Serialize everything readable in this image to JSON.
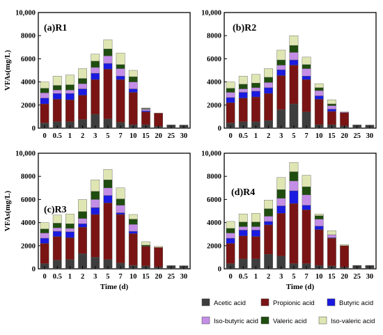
{
  "chart_data": {
    "type": "bar",
    "stacked": true,
    "xlabel": "Time (d)",
    "ylabel": "VFAs(mg/L)",
    "ylim": [
      0,
      10000
    ],
    "yticks": [
      0,
      2000,
      4000,
      6000,
      8000,
      10000
    ],
    "ytick_labels": [
      "0",
      "2000",
      "4000",
      "6000",
      "8000",
      "10,000"
    ],
    "categories": [
      "0",
      "0.5",
      "1",
      "2",
      "3",
      "5",
      "7",
      "10",
      "15",
      "20",
      "25",
      "30"
    ],
    "legend": [
      {
        "name": "Acetic acid",
        "color": "#3d3d3d"
      },
      {
        "name": "Propionic acid",
        "color": "#7a1414"
      },
      {
        "name": "Butyric acid",
        "color": "#1a1ae0"
      },
      {
        "name": "Iso-butyric acid",
        "color": "#c48ee6"
      },
      {
        "name": "Valeric acid",
        "color": "#1f4d0f"
      },
      {
        "name": "Iso-valeric acid",
        "color": "#dfe6b3"
      }
    ],
    "panels": [
      {
        "label": "(a)R1",
        "stacks": [
          [
            450,
            1650,
            500,
            450,
            400,
            550
          ],
          [
            550,
            1950,
            500,
            300,
            400,
            800
          ],
          [
            550,
            1900,
            550,
            300,
            450,
            850
          ],
          [
            750,
            2100,
            550,
            450,
            450,
            850
          ],
          [
            1200,
            3000,
            550,
            500,
            550,
            600
          ],
          [
            800,
            4300,
            500,
            650,
            600,
            800
          ],
          [
            500,
            3700,
            300,
            650,
            350,
            1000
          ],
          [
            300,
            2800,
            300,
            600,
            450,
            550
          ],
          [
            300,
            1100,
            100,
            150,
            50,
            50
          ],
          [
            150,
            1150,
            0,
            0,
            0,
            0
          ],
          [
            280,
            0,
            0,
            0,
            0,
            0
          ],
          [
            270,
            0,
            0,
            0,
            0,
            0
          ]
        ]
      },
      {
        "label": "(b)R2",
        "stacks": [
          [
            450,
            1750,
            450,
            450,
            350,
            550
          ],
          [
            550,
            2050,
            500,
            300,
            400,
            700
          ],
          [
            550,
            2150,
            500,
            300,
            400,
            750
          ],
          [
            650,
            2350,
            500,
            450,
            450,
            750
          ],
          [
            1600,
            2950,
            500,
            400,
            450,
            850
          ],
          [
            2100,
            3350,
            450,
            650,
            600,
            850
          ],
          [
            1400,
            2800,
            300,
            650,
            350,
            650
          ],
          [
            300,
            2200,
            300,
            450,
            250,
            350
          ],
          [
            300,
            1150,
            200,
            300,
            150,
            350
          ],
          [
            200,
            1150,
            0,
            50,
            0,
            0
          ],
          [
            280,
            0,
            0,
            0,
            0,
            0
          ],
          [
            270,
            0,
            0,
            0,
            0,
            0
          ]
        ]
      },
      {
        "label": "(c)R3",
        "stacks": [
          [
            450,
            1750,
            450,
            450,
            350,
            550
          ],
          [
            750,
            2050,
            450,
            300,
            400,
            700
          ],
          [
            800,
            1900,
            500,
            300,
            400,
            850
          ],
          [
            1300,
            2300,
            300,
            450,
            600,
            1050
          ],
          [
            1000,
            3700,
            600,
            700,
            700,
            1000
          ],
          [
            800,
            4900,
            650,
            650,
            700,
            900
          ],
          [
            500,
            4200,
            150,
            650,
            550,
            950
          ],
          [
            300,
            2750,
            200,
            600,
            450,
            400
          ],
          [
            250,
            1700,
            0,
            0,
            100,
            300
          ],
          [
            150,
            1700,
            0,
            0,
            0,
            100
          ],
          [
            280,
            0,
            0,
            0,
            0,
            0
          ],
          [
            270,
            0,
            0,
            0,
            0,
            0
          ]
        ]
      },
      {
        "label": "(d)R4",
        "stacks": [
          [
            450,
            1750,
            450,
            450,
            400,
            600
          ],
          [
            850,
            2000,
            500,
            300,
            400,
            700
          ],
          [
            850,
            1950,
            550,
            300,
            400,
            750
          ],
          [
            1250,
            2550,
            300,
            450,
            650,
            750
          ],
          [
            1100,
            3700,
            650,
            650,
            750,
            1050
          ],
          [
            450,
            5200,
            1100,
            850,
            800,
            800
          ],
          [
            450,
            4650,
            400,
            900,
            700,
            1000
          ],
          [
            300,
            3100,
            300,
            600,
            300,
            150
          ],
          [
            250,
            2400,
            50,
            250,
            0,
            350
          ],
          [
            150,
            1850,
            0,
            0,
            0,
            100
          ],
          [
            300,
            0,
            0,
            0,
            0,
            0
          ],
          [
            300,
            0,
            0,
            0,
            0,
            0
          ]
        ]
      }
    ]
  }
}
